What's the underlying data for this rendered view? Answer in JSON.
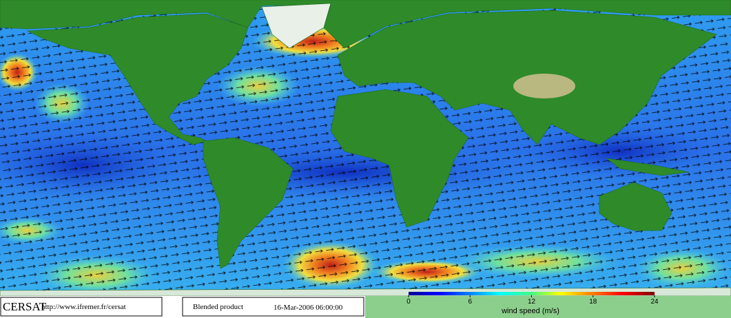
{
  "footer": {
    "logo": "CERSAT",
    "url": "http://www.ifremer.fr/cersat",
    "product": "Blended product",
    "date": "16-Mar-2006 06:00:00"
  },
  "colorbar": {
    "label": "wind speed (m/s)",
    "lim": [
      0,
      24
    ],
    "ticks": [
      0,
      6,
      12,
      18,
      24
    ]
  }
}
